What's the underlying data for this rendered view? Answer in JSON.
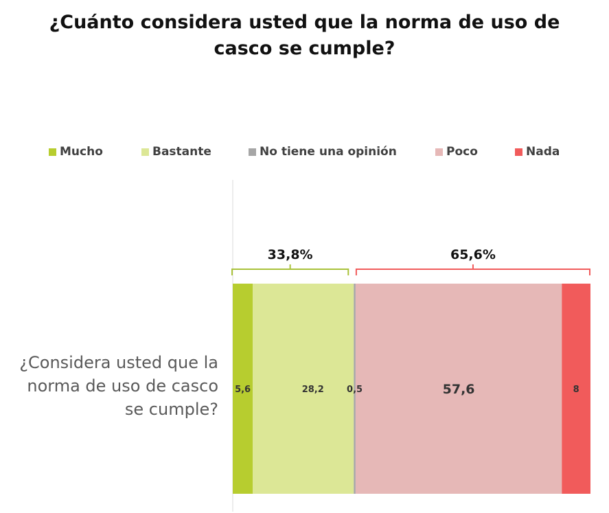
{
  "chart_data": {
    "type": "bar",
    "orientation": "horizontal",
    "stacked": true,
    "title": "¿Cuánto considera usted que la norma de uso de casco se cumple?",
    "categories": [
      "¿Considera usted que la norma de uso de casco se cumple?"
    ],
    "series": [
      {
        "name": "Mucho",
        "values": [
          5.6
        ],
        "label": "5,6",
        "color": "#b7cd2f"
      },
      {
        "name": "Bastante",
        "values": [
          28.2
        ],
        "label": "28,2",
        "color": "#dce796"
      },
      {
        "name": "No tiene una opinión",
        "values": [
          0.5
        ],
        "label": "0,5",
        "color": "#a6a6a6"
      },
      {
        "name": "Poco",
        "values": [
          57.6
        ],
        "label": "57,6",
        "color": "#e6b8b7"
      },
      {
        "name": "Nada",
        "values": [
          8
        ],
        "label": "8",
        "color": "#f15b5b"
      }
    ],
    "xlim": [
      0,
      100
    ],
    "legend_position": "top",
    "grid": false,
    "annotations": [
      {
        "text": "33,8%",
        "spans_series": [
          "Mucho",
          "Bastante"
        ],
        "color": "#a9c23a"
      },
      {
        "text": "65,6%",
        "spans_series": [
          "Poco",
          "Nada"
        ],
        "color": "#f15b5b"
      }
    ]
  }
}
